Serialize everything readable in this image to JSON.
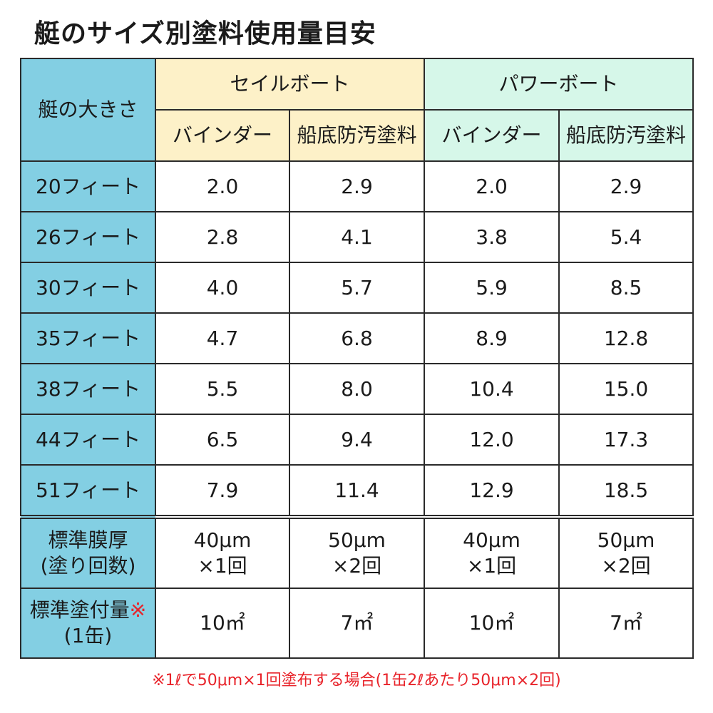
{
  "title": "艇のサイズ別塗料使用量目安",
  "header": {
    "size_label": "艇の大きさ",
    "sailboat": "セイルボート",
    "powerboat": "パワーボート",
    "binder": "バインダー",
    "antifouling": "船底防汚塗料"
  },
  "rows": [
    {
      "size": "20フィート",
      "values": [
        "2.0",
        "2.9",
        "2.0",
        "2.9"
      ]
    },
    {
      "size": "26フィート",
      "values": [
        "2.8",
        "4.1",
        "3.8",
        "5.4"
      ]
    },
    {
      "size": "30フィート",
      "values": [
        "4.0",
        "5.7",
        "5.9",
        "8.5"
      ]
    },
    {
      "size": "35フィート",
      "values": [
        "4.7",
        "6.8",
        "8.9",
        "12.8"
      ]
    },
    {
      "size": "38フィート",
      "values": [
        "5.5",
        "8.0",
        "10.4",
        "15.0"
      ]
    },
    {
      "size": "44フィート",
      "values": [
        "6.5",
        "9.4",
        "12.0",
        "17.3"
      ]
    },
    {
      "size": "51フィート",
      "values": [
        "7.9",
        "11.4",
        "12.9",
        "18.5"
      ]
    }
  ],
  "film": {
    "label_line1": "標準膜厚",
    "label_line2": "(塗り回数)",
    "values": [
      {
        "line1": "40μm",
        "line2": "×1回"
      },
      {
        "line1": "50μm",
        "line2": "×2回"
      },
      {
        "line1": "40μm",
        "line2": "×1回"
      },
      {
        "line1": "50μm",
        "line2": "×2回"
      }
    ]
  },
  "coverage": {
    "label_line1": "標準塗付量",
    "label_mark": "※",
    "label_line2": "(1缶)",
    "values": [
      "10㎡",
      "7㎡",
      "10㎡",
      "7㎡"
    ]
  },
  "footnote": "※1ℓで50μm×1回塗布する場合(1缶2ℓあたり50μm×2回)",
  "colors": {
    "size_header_bg": "#83cfe3",
    "sailboat_bg": "#fdf1c8",
    "powerboat_bg": "#d6f7e9",
    "note_red": "#e8232a"
  }
}
